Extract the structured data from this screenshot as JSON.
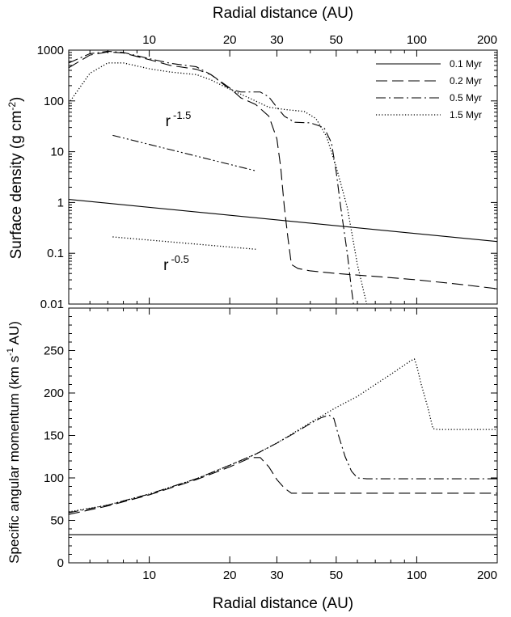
{
  "chart_data": [
    {
      "panel": "top",
      "type": "line",
      "top_axis_label": "Radial distance (AU)",
      "ylabel": "Surface density (g cm^-2)",
      "ylabel_parts": [
        "Surface density (g cm",
        "-2",
        ")"
      ],
      "xscale": "log",
      "yscale": "log",
      "xlim": [
        5,
        200
      ],
      "ylim": [
        0.01,
        1000
      ],
      "x_ticks": [
        10,
        20,
        30,
        50,
        100,
        200
      ],
      "x_tick_labels": [
        "10",
        "20",
        "30",
        "50",
        "100",
        "200"
      ],
      "y_ticks": [
        0.01,
        0.1,
        1,
        10,
        100,
        1000
      ],
      "y_tick_labels": [
        "0.01",
        "0.1",
        "1",
        "10",
        "100",
        "1000"
      ],
      "legend_position": "top-right",
      "series": [
        {
          "name": "0.1 Myr",
          "style": "solid",
          "x": [
            5,
            200
          ],
          "y": [
            1.15,
            0.17
          ]
        },
        {
          "name": "0.2 Myr",
          "style": "dashed",
          "x": [
            5,
            6,
            7,
            8,
            10,
            12,
            15,
            17,
            20,
            22,
            25,
            28,
            30,
            31,
            32,
            33,
            34,
            36,
            40,
            50,
            70,
            100,
            150,
            200
          ],
          "y": [
            450,
            800,
            920,
            880,
            650,
            500,
            420,
            330,
            180,
            115,
            85,
            50,
            18,
            5,
            0.8,
            0.2,
            0.06,
            0.05,
            0.045,
            0.04,
            0.035,
            0.03,
            0.024,
            0.02
          ]
        },
        {
          "name": "0.5 Myr",
          "style": "dashdot",
          "x": [
            5,
            6,
            7,
            8,
            10,
            12,
            15,
            17,
            20,
            22,
            24,
            26,
            28,
            30,
            32,
            35,
            40,
            45,
            48,
            50,
            52,
            55,
            57,
            58
          ],
          "y": [
            560,
            850,
            950,
            900,
            680,
            550,
            470,
            330,
            170,
            150,
            150,
            150,
            120,
            75,
            50,
            38,
            37,
            30,
            15,
            4,
            0.8,
            0.1,
            0.02,
            0.01
          ]
        },
        {
          "name": "1.5 Myr",
          "style": "dotted",
          "x": [
            5,
            6,
            7,
            8,
            10,
            12,
            15,
            17,
            20,
            24,
            28,
            32,
            38,
            42,
            46,
            50,
            55,
            60,
            63,
            65
          ],
          "y": [
            90,
            350,
            560,
            560,
            430,
            370,
            330,
            260,
            170,
            110,
            75,
            68,
            62,
            45,
            20,
            5,
            0.8,
            0.06,
            0.02,
            0.01
          ]
        },
        {
          "name": "r^-1.5 reference",
          "style": "dashdotdot",
          "x": [
            7.3,
            25
          ],
          "y": [
            21,
            4.2
          ]
        },
        {
          "name": "r^-0.5 reference",
          "style": "dotted",
          "x": [
            7.3,
            25
          ],
          "y": [
            0.21,
            0.12
          ]
        }
      ],
      "annotations": [
        {
          "base": "r",
          "exponent": "-1.5",
          "x": 11.5,
          "y": 32
        },
        {
          "base": "r",
          "exponent": "-0.5",
          "x": 11.3,
          "y": 0.047
        }
      ]
    },
    {
      "panel": "bottom",
      "type": "line",
      "xlabel": "Radial distance (AU)",
      "ylabel": "Specific angular momentum (km s^-1 AU)",
      "ylabel_parts": [
        "Specific angular momentum (km s",
        "-1",
        " AU)"
      ],
      "xscale": "log",
      "yscale": "linear",
      "xlim": [
        5,
        200
      ],
      "ylim": [
        0,
        300
      ],
      "x_ticks": [
        10,
        20,
        30,
        50,
        100,
        200
      ],
      "x_tick_labels": [
        "10",
        "20",
        "30",
        "50",
        "100",
        "200"
      ],
      "y_ticks": [
        0,
        50,
        100,
        150,
        200,
        250
      ],
      "y_tick_labels": [
        "0",
        "50",
        "100",
        "150",
        "200",
        "250"
      ],
      "series": [
        {
          "name": "0.1 Myr",
          "style": "solid",
          "x": [
            5,
            200
          ],
          "y": [
            33,
            33
          ]
        },
        {
          "name": "0.2 Myr",
          "style": "dashed",
          "x": [
            5,
            7,
            10,
            15,
            20,
            24,
            26,
            28,
            30,
            32,
            34,
            40,
            60,
            100,
            200
          ],
          "y": [
            57,
            67,
            80,
            98,
            113,
            124,
            124,
            113,
            98,
            88,
            82,
            82,
            82,
            82,
            82
          ]
        },
        {
          "name": "0.5 Myr",
          "style": "dashdot",
          "x": [
            5,
            7,
            10,
            15,
            20,
            25,
            30,
            35,
            40,
            44,
            47,
            49,
            51,
            54,
            57,
            60,
            65,
            80,
            100,
            200
          ],
          "y": [
            59,
            68,
            81,
            99,
            115,
            128,
            141,
            153,
            164,
            171,
            174,
            170,
            150,
            125,
            108,
            100,
            99,
            99,
            99,
            99
          ]
        },
        {
          "name": "1.5 Myr",
          "style": "dotted",
          "x": [
            5,
            7,
            10,
            15,
            20,
            25,
            30,
            40,
            50,
            60,
            70,
            80,
            90,
            95,
            98,
            100,
            104,
            110,
            115,
            120,
            150,
            200
          ],
          "y": [
            60,
            68,
            81,
            99,
            115,
            128,
            141,
            165,
            183,
            196,
            210,
            222,
            233,
            238,
            240,
            232,
            210,
            183,
            158,
            157,
            157,
            157
          ]
        }
      ]
    }
  ]
}
